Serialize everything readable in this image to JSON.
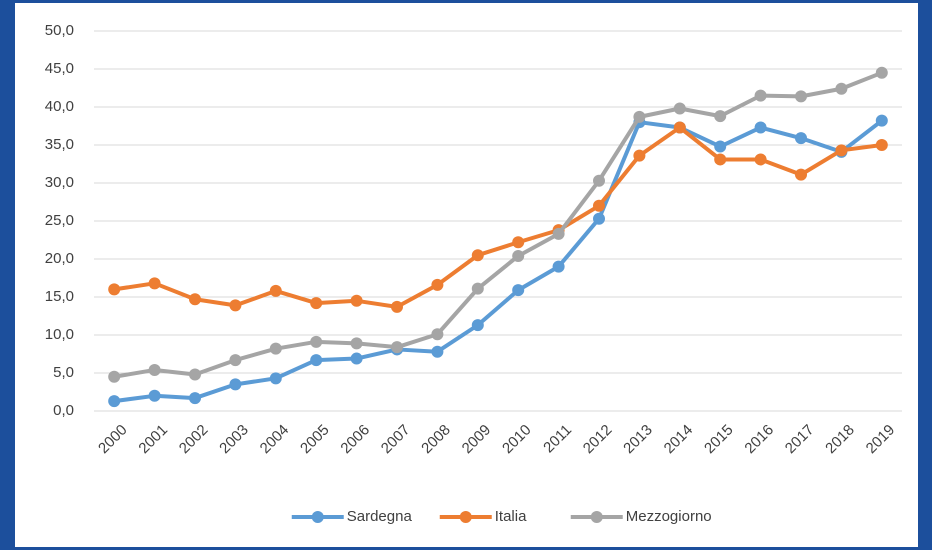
{
  "chart_data": {
    "type": "line",
    "categories": [
      "2000",
      "2001",
      "2002",
      "2003",
      "2004",
      "2005",
      "2006",
      "2007",
      "2008",
      "2009",
      "2010",
      "2011",
      "2012",
      "2013",
      "2014",
      "2015",
      "2016",
      "2017",
      "2018",
      "2019"
    ],
    "series": [
      {
        "name": "Sardegna",
        "color": "#5b9bd5",
        "values": [
          1.3,
          2.0,
          1.7,
          3.5,
          4.3,
          6.7,
          6.9,
          8.1,
          7.8,
          11.3,
          15.9,
          19.0,
          25.3,
          38.0,
          37.3,
          34.8,
          37.3,
          35.9,
          34.1,
          38.2
        ]
      },
      {
        "name": "Italia",
        "color": "#ed7d31",
        "values": [
          16.0,
          16.8,
          14.7,
          13.9,
          15.8,
          14.2,
          14.5,
          13.7,
          16.6,
          20.5,
          22.2,
          23.8,
          27.0,
          33.6,
          37.3,
          33.1,
          33.1,
          31.1,
          34.3,
          35.0
        ]
      },
      {
        "name": "Mezzogiorno",
        "color": "#a5a5a5",
        "values": [
          4.5,
          5.4,
          4.8,
          6.7,
          8.2,
          9.1,
          8.9,
          8.4,
          10.1,
          16.1,
          20.4,
          23.3,
          30.3,
          38.7,
          39.8,
          38.8,
          41.5,
          41.4,
          42.4,
          44.5
        ]
      }
    ],
    "ylim": [
      0,
      50
    ],
    "yticks": [
      {
        "value": 0,
        "label": "0,0"
      },
      {
        "value": 5,
        "label": "5,0"
      },
      {
        "value": 10,
        "label": "10,0"
      },
      {
        "value": 15,
        "label": "15,0"
      },
      {
        "value": 20,
        "label": "20,0"
      },
      {
        "value": 25,
        "label": "25,0"
      },
      {
        "value": 30,
        "label": "30,0"
      },
      {
        "value": 35,
        "label": "35,0"
      },
      {
        "value": 40,
        "label": "40,0"
      },
      {
        "value": 45,
        "label": "45,0"
      },
      {
        "value": 50,
        "label": "50,0"
      }
    ],
    "grid": true,
    "legend": "bottom"
  }
}
